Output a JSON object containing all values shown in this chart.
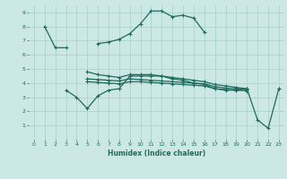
{
  "x": [
    0,
    1,
    2,
    3,
    4,
    5,
    6,
    7,
    8,
    9,
    10,
    11,
    12,
    13,
    14,
    15,
    16,
    17,
    18,
    19,
    20,
    21,
    22,
    23
  ],
  "line1": [
    null,
    8.0,
    6.5,
    6.5,
    null,
    null,
    6.8,
    6.9,
    7.1,
    7.5,
    8.2,
    9.1,
    9.1,
    8.7,
    8.8,
    8.6,
    7.6,
    null,
    null,
    null,
    null,
    null,
    null,
    null
  ],
  "line2": [
    null,
    null,
    null,
    null,
    null,
    4.8,
    4.6,
    4.5,
    4.4,
    4.6,
    4.6,
    4.6,
    4.5,
    4.4,
    4.3,
    4.2,
    4.1,
    3.9,
    3.8,
    3.7,
    3.6,
    null,
    null,
    3.6
  ],
  "line3": [
    null,
    null,
    null,
    null,
    null,
    4.3,
    4.25,
    4.2,
    4.15,
    4.3,
    4.25,
    4.2,
    4.15,
    4.1,
    4.05,
    4.0,
    3.95,
    3.75,
    3.65,
    3.6,
    3.55,
    null,
    null,
    null
  ],
  "line4": [
    null,
    null,
    null,
    null,
    null,
    4.1,
    4.05,
    4.0,
    3.95,
    4.1,
    4.1,
    4.05,
    4.0,
    3.95,
    3.9,
    3.85,
    3.8,
    3.6,
    3.55,
    3.5,
    3.45,
    null,
    null,
    null
  ],
  "line5": [
    null,
    null,
    null,
    3.5,
    3.0,
    2.2,
    3.1,
    3.5,
    3.6,
    4.5,
    4.5,
    4.5,
    4.5,
    4.3,
    4.2,
    4.0,
    3.9,
    3.6,
    3.5,
    3.5,
    3.6,
    1.4,
    0.8,
    3.6
  ],
  "xlabel": "Humidex (Indice chaleur)",
  "ylim": [
    0,
    9.5
  ],
  "xlim": [
    -0.5,
    23.5
  ],
  "bg_color": "#cce8e4",
  "grid_color": "#aacfcb",
  "line_color": "#1e6b5e",
  "tick_color": "#1e6b5e"
}
